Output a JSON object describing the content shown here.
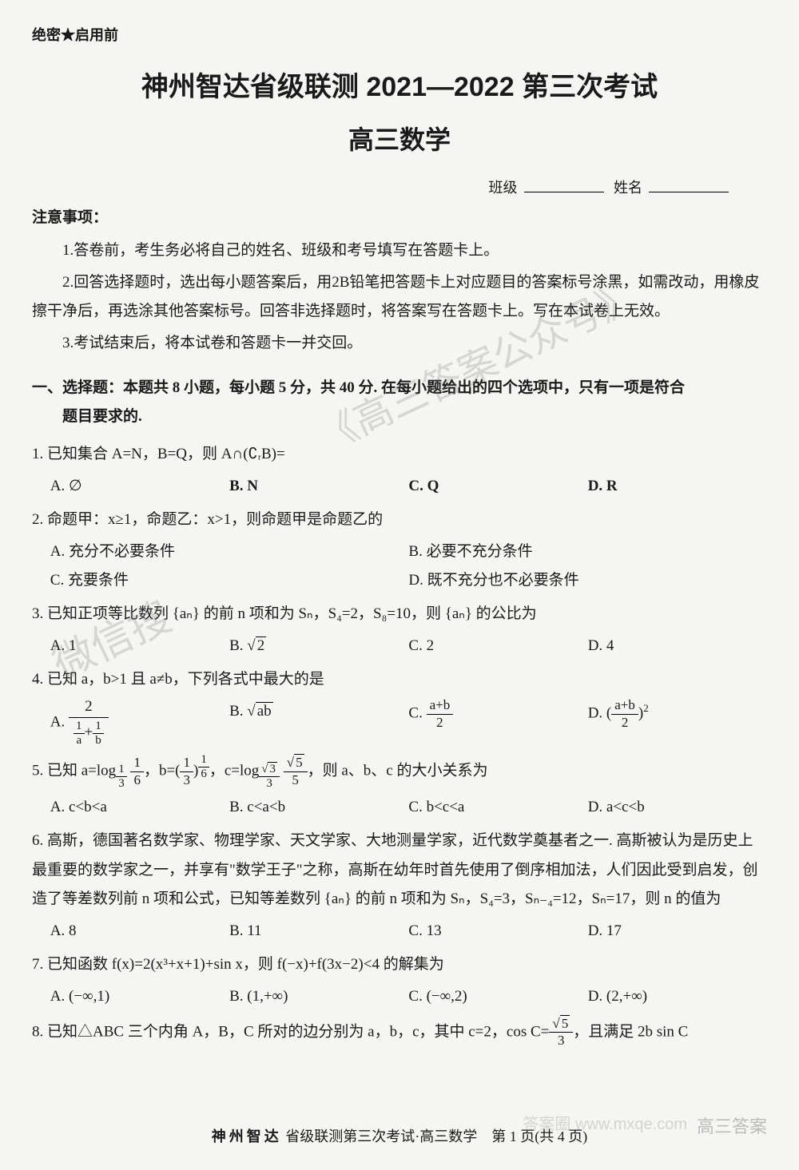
{
  "header_mark": "绝密★启用前",
  "title": "神州智达省级联测 2021—2022 第三次考试",
  "subtitle": "高三数学",
  "class_label": "班级",
  "name_label": "姓名",
  "notice_title": "注意事项：",
  "notices": [
    "1.答卷前，考生务必将自己的姓名、班级和考号填写在答题卡上。",
    "2.回答选择题时，选出每小题答案后，用2B铅笔把答题卡上对应题目的答案标号涂黑，如需改动，用橡皮擦干净后，再选涂其他答案标号。回答非选择题时，将答案写在答题卡上。写在本试卷上无效。",
    "3.考试结束后，将本试卷和答题卡一并交回。"
  ],
  "section1_title_line1": "一、选择题：本题共 8 小题，每小题 5 分，共 40 分. 在每小题给出的四个选项中，只有一项是符合",
  "section1_title_line2": "题目要求的.",
  "q1": {
    "text": "1. 已知集合 A=N，B=Q，则 A∩(∁ᵣB)=",
    "opts": [
      "A. ∅",
      "B. N",
      "C. Q",
      "D. R"
    ]
  },
  "q2": {
    "text": "2. 命题甲：x≥1，命题乙：x>1，则命题甲是命题乙的",
    "opts": [
      "A. 充分不必要条件",
      "B. 必要不充分条件",
      "C. 充要条件",
      "D. 既不充分也不必要条件"
    ]
  },
  "q3": {
    "text_pre": "3. 已知正项等比数列 {aₙ} 的前 n 项和为 Sₙ，S₄=2，S₈=10，则 {aₙ} 的公比为",
    "opts": {
      "a": "A. 1",
      "b_pre": "B. ",
      "b_sqrt": "2",
      "c": "C. 2",
      "d": "D. 4"
    }
  },
  "q4": {
    "text": "4. 已知 a，b>1 且 a≠b，下列各式中最大的是",
    "a_label": "A. ",
    "a_num": "2",
    "a_den1_n": "1",
    "a_den1_d": "a",
    "a_den2_n": "1",
    "a_den2_d": "b",
    "b_label": "B. ",
    "b_sqrt": "ab",
    "c_label": "C. ",
    "c_num": "a+b",
    "c_den": "2",
    "d_label": "D. ",
    "d_num": "a+b",
    "d_den": "2",
    "d_exp": "2"
  },
  "q5": {
    "text_pre": "5. 已知 a=log",
    "a_base_n": "1",
    "a_base_d": "3",
    "a_arg_n": "1",
    "a_arg_d": "6",
    "mid1": "，b=(",
    "b_base_n": "1",
    "b_base_d": "3",
    "b_exp_n": "1",
    "b_exp_d": "6",
    "mid2": ")，c=log",
    "c_base_sqrt": "3",
    "c_base_d": "3",
    "c_arg_sqrt": "5",
    "c_arg_d": "5",
    "text_post": "，则 a、b、c 的大小关系为",
    "opts": [
      "A. c<b<a",
      "B. c<a<b",
      "C. b<c<a",
      "D. a<c<b"
    ]
  },
  "q6": {
    "text": "6. 高斯，德国著名数学家、物理学家、天文学家、大地测量学家，近代数学奠基者之一. 高斯被认为是历史上最重要的数学家之一，并享有\"数学王子\"之称，高斯在幼年时首先使用了倒序相加法，人们因此受到启发，创造了等差数列前 n 项和公式，已知等差数列 {aₙ} 的前 n 项和为 Sₙ，S₄=3，Sₙ₋₄=12，Sₙ=17，则 n 的值为",
    "opts": [
      "A. 8",
      "B. 11",
      "C. 13",
      "D. 17"
    ]
  },
  "q7": {
    "text": "7. 已知函数 f(x)=2(x³+x+1)+sin x，则 f(−x)+f(3x−2)<4 的解集为",
    "opts": [
      "A. (−∞,1)",
      "B. (1,+∞)",
      "C. (−∞,2)",
      "D. (2,+∞)"
    ]
  },
  "q8": {
    "text_pre": "8. 已知△ABC 三个内角 A，B，C 所对的边分别为 a，b，c，其中 c=2，cos C=",
    "frac_sqrt": "5",
    "frac_den": "3",
    "text_post": "，且满足 2b sin C"
  },
  "footer_bold": "神州智达",
  "footer_rest": " 省级联测第三次考试·高三数学　第 1 页(共 4 页)",
  "watermarks": {
    "wm1": "《高三答案公众号》",
    "wm2": "微信搜",
    "wm3": "高三答案",
    "wm4": "答案圈 www.mxqe.com"
  },
  "colors": {
    "bg": "#f5f5f3",
    "text": "#1a1a1a",
    "watermark": "rgba(120,120,120,0.25)"
  }
}
